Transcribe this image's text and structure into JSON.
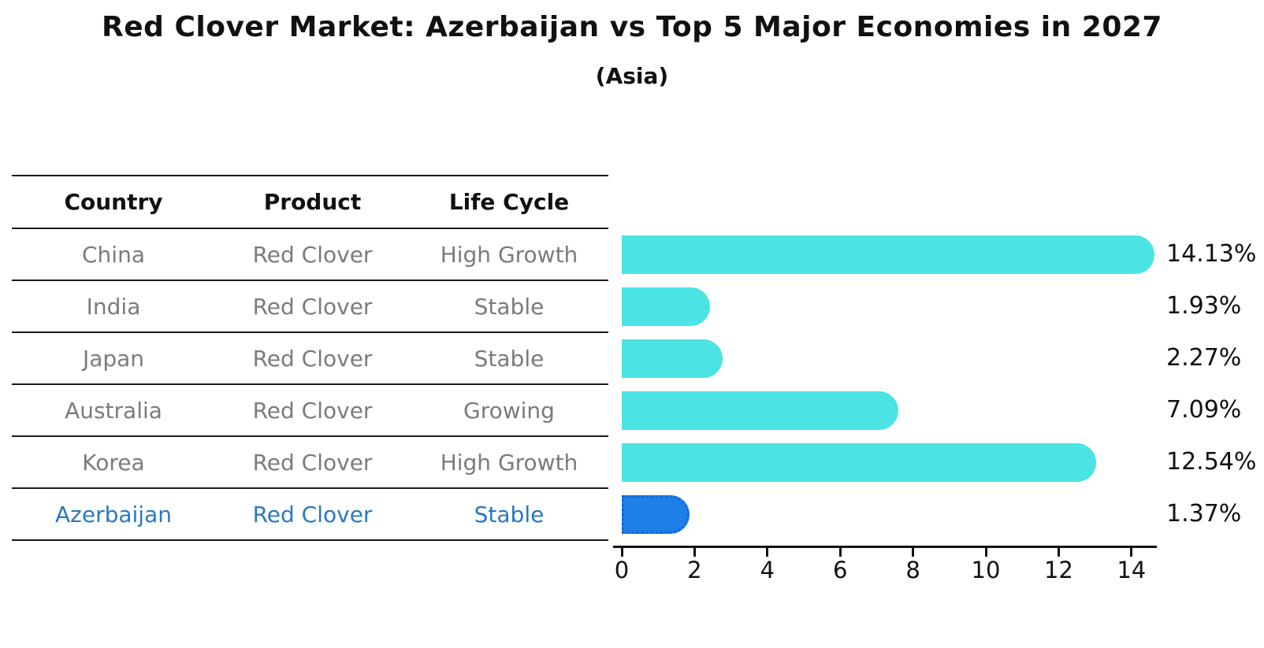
{
  "page": {
    "background": "#ffffff"
  },
  "chart_data": {
    "type": "bar",
    "orientation": "horizontal",
    "title": "Red Clover Market: Azerbaijan vs Top 5 Major Economies in 2027",
    "subtitle": "(Asia)",
    "categories": [
      "China",
      "India",
      "Japan",
      "Australia",
      "Korea",
      "Azerbaijan"
    ],
    "values": [
      14.13,
      1.93,
      2.27,
      7.09,
      12.54,
      1.37
    ],
    "value_labels": [
      "14.13%",
      "1.93%",
      "2.27%",
      "7.09%",
      "12.54%",
      "1.37%"
    ],
    "highlight_category": "Azerbaijan",
    "highlight_index": 5,
    "xlim": [
      0,
      14.75
    ],
    "x_ticks": [
      0,
      2,
      4,
      6,
      8,
      10,
      12,
      14
    ],
    "grid": false,
    "legend": false,
    "ylabel": "",
    "xlabel": ""
  },
  "table": {
    "headers": [
      "Country",
      "Product",
      "Life Cycle"
    ],
    "rows": [
      {
        "country": "China",
        "product": "Red Clover",
        "life_cycle": "High Growth",
        "highlight": false
      },
      {
        "country": "India",
        "product": "Red Clover",
        "life_cycle": "Stable",
        "highlight": false
      },
      {
        "country": "Japan",
        "product": "Red Clover",
        "life_cycle": "Stable",
        "highlight": false
      },
      {
        "country": "Australia",
        "product": "Red Clover",
        "life_cycle": "Growing",
        "highlight": false
      },
      {
        "country": "Korea",
        "product": "Red Clover",
        "life_cycle": "High Growth",
        "highlight": false
      },
      {
        "country": "Azerbaijan",
        "product": "Red Clover",
        "life_cycle": "Stable",
        "highlight": true
      }
    ]
  },
  "colors": {
    "bar_default": "#4BE3E3",
    "bar_highlight": "#1E7FE8",
    "bar_highlight_edge": "#1565D0",
    "highlight_text": "#2879C0",
    "row_text": "#7b7b7b",
    "header_text": "#111111",
    "line": "#1a1a1a",
    "axis": "#111111"
  }
}
